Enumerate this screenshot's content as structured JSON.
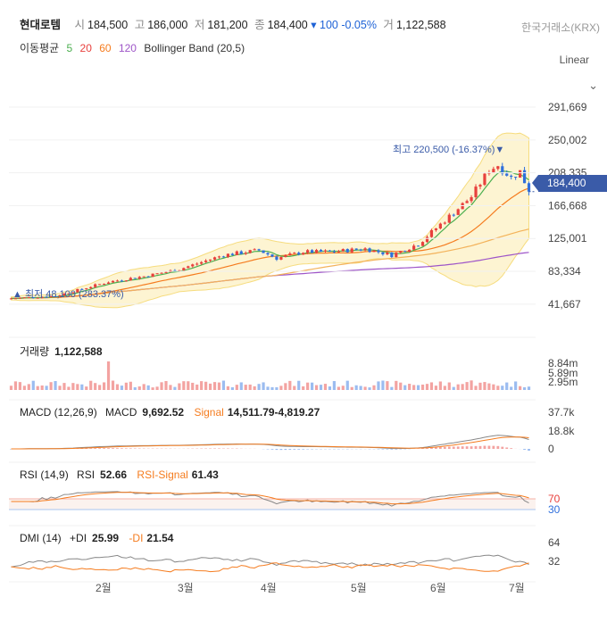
{
  "header": {
    "stock_name": "현대로템",
    "open_label": "시",
    "open": "184,500",
    "high_label": "고",
    "high": "186,000",
    "low_label": "저",
    "low": "181,200",
    "close_label": "종",
    "close": "184,400",
    "change": "▾ 100 -0.05%",
    "volume_label": "거",
    "volume": "1,122,588",
    "exchange": "한국거래소(KRX)",
    "scale": "Linear",
    "ma_label": "이동평균",
    "ma_periods": [
      "5",
      "20",
      "60",
      "120"
    ],
    "bollinger_label": "Bollinger Band (20,5)"
  },
  "colors": {
    "up": "#e8403d",
    "down": "#2f6fdc",
    "ma5": "#4caf50",
    "ma20": "#f57c1f",
    "ma60": "#f3b25a",
    "ma120": "#9e55c8",
    "band_fill": "#fdf4d2",
    "band_stroke": "#f6dc7e",
    "price_tag": "#3a5ba8"
  },
  "current_price_tag": "184,400",
  "chart_data": [
    {
      "panel": "price",
      "type": "candlestick",
      "ylim": [
        20000,
        320000
      ],
      "y_ticks": [
        "291,669",
        "250,002",
        "208,335",
        "166,668",
        "125,001",
        "83,334",
        "41,667"
      ],
      "x_ticks": [
        "2월",
        "3월",
        "4월",
        "5월",
        "6월",
        "7월"
      ],
      "annotations": {
        "high": "최고 220,500 (-16.37%)▼",
        "low": "▲ 최저 48,100 (283.37%)"
      },
      "legend": [
        "5",
        "20",
        "60",
        "120",
        "Bollinger Band (20,5)"
      ],
      "last_close": 184400
    },
    {
      "panel": "volume",
      "type": "bar",
      "title": "거래량",
      "value": "1,122,588",
      "y_ticks": [
        "8.84m",
        "5.89m",
        "2.95m"
      ]
    },
    {
      "panel": "macd",
      "type": "line",
      "title": "MACD (12,26,9)",
      "macd_label": "MACD",
      "macd_value": "9,692.52",
      "signal_label": "Signal",
      "signal_value": "14,511.79",
      "hist_value": "-4,819.27",
      "y_ticks": [
        "37.7k",
        "18.8k",
        "0"
      ]
    },
    {
      "panel": "rsi",
      "type": "line",
      "title": "RSI (14,9)",
      "rsi_label": "RSI",
      "rsi_value": "52.66",
      "signal_label": "RSI-Signal",
      "signal_value": "61.43",
      "y_ticks": [
        "70",
        "30"
      ]
    },
    {
      "panel": "dmi",
      "type": "line",
      "title": "DMI (14)",
      "pdi_label": "+DI",
      "pdi_value": "25.99",
      "mdi_label": "-DI",
      "mdi_value": "21.54",
      "y_ticks": [
        "64",
        "32"
      ]
    }
  ]
}
